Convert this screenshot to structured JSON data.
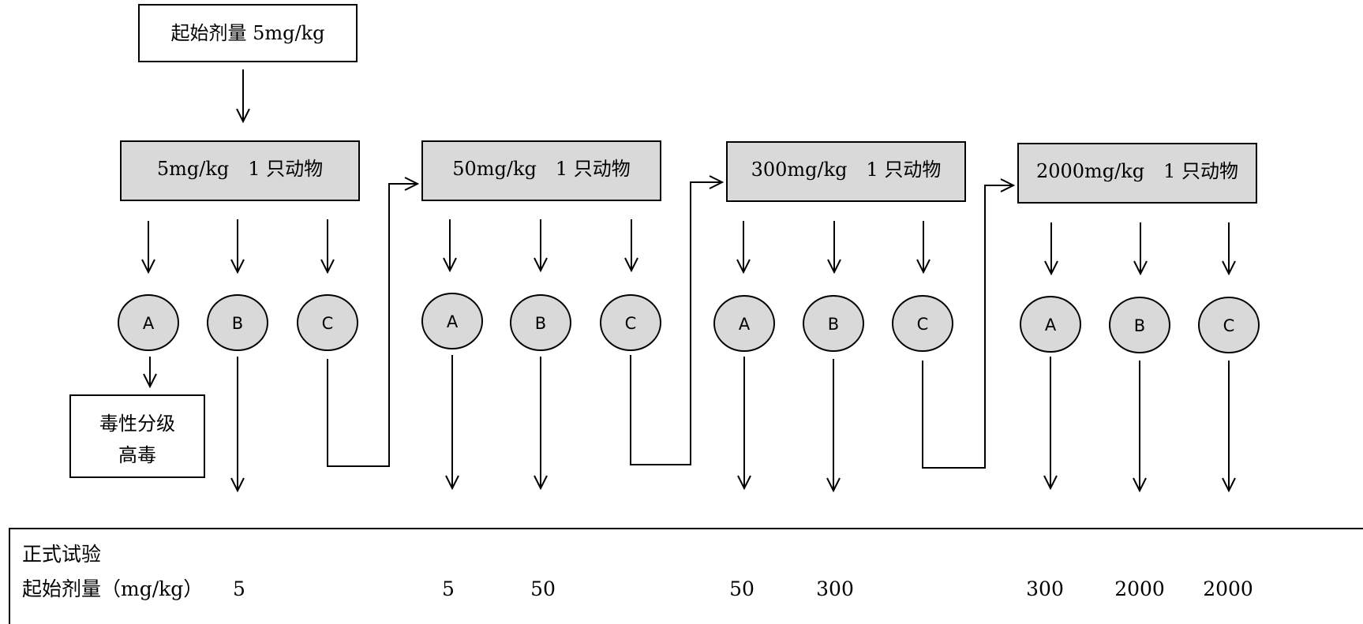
{
  "start_box": "起始剂量 5mg/kg",
  "dose_boxes": [
    "5mg/kg　1 只动物",
    "50mg/kg　1 只动物",
    "300mg/kg　1 只动物",
    "2000mg/kg　1 只动物"
  ],
  "outcome_labels": [
    "A",
    "B",
    "C"
  ],
  "result_box": [
    "毒性分级",
    "高毒"
  ],
  "formal_test": {
    "title": "正式试验",
    "row_label": "起始剂量（mg/kg）",
    "values": [
      "5",
      "5",
      "50",
      "50",
      "300",
      "300",
      "2000",
      "2000"
    ]
  },
  "colors": {
    "box_fill": "#d9d9d9",
    "stroke": "#000000",
    "background": "#ffffff"
  }
}
